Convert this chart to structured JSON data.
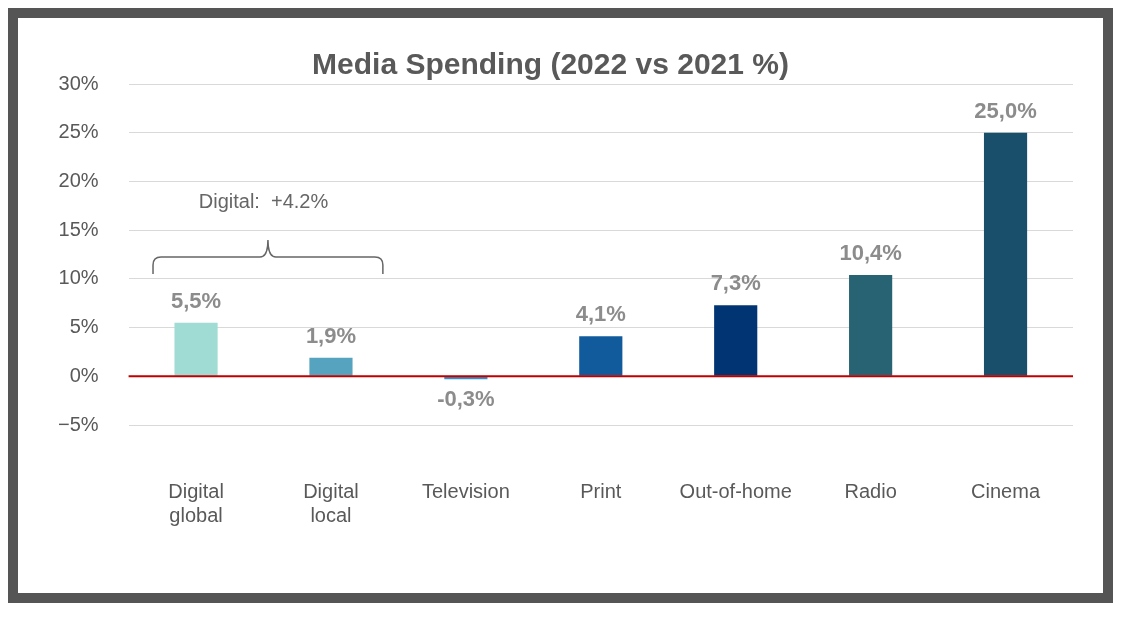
{
  "chart_data": {
    "type": "bar",
    "title": "Media Spending (2022 vs 2021 %)",
    "categories": [
      "Digital global",
      "Digital local",
      "Television",
      "Print",
      "Out-of-home",
      "Radio",
      "Cinema"
    ],
    "values": [
      5.5,
      1.9,
      -0.3,
      4.1,
      7.3,
      10.4,
      25.0
    ],
    "colors": [
      "#a0dcd3",
      "#56a3bf",
      "#3a8fc4",
      "#115b9c",
      "#003473",
      "#286373",
      "#1a4f6b"
    ],
    "value_labels": [
      "5,5%",
      "1,9%",
      "-0,3%",
      "4,1%",
      "7,3%",
      "10,4%",
      "25,0%"
    ],
    "ylim": [
      -5,
      30
    ],
    "yticks": [
      {
        "value": -5,
        "label": "−5%"
      },
      {
        "value": 0,
        "label": "0%"
      },
      {
        "value": 5,
        "label": "5%"
      },
      {
        "value": 10,
        "label": "10%"
      },
      {
        "value": 15,
        "label": "15%"
      },
      {
        "value": 20,
        "label": "20%"
      },
      {
        "value": 25,
        "label": "25%"
      },
      {
        "value": 30,
        "label": "30%"
      }
    ],
    "grid": "y",
    "ref_lines": [
      {
        "axis": "y",
        "value": 0,
        "color": "#c00000"
      }
    ],
    "annotations": [
      "Digital:  +4.2%"
    ]
  }
}
